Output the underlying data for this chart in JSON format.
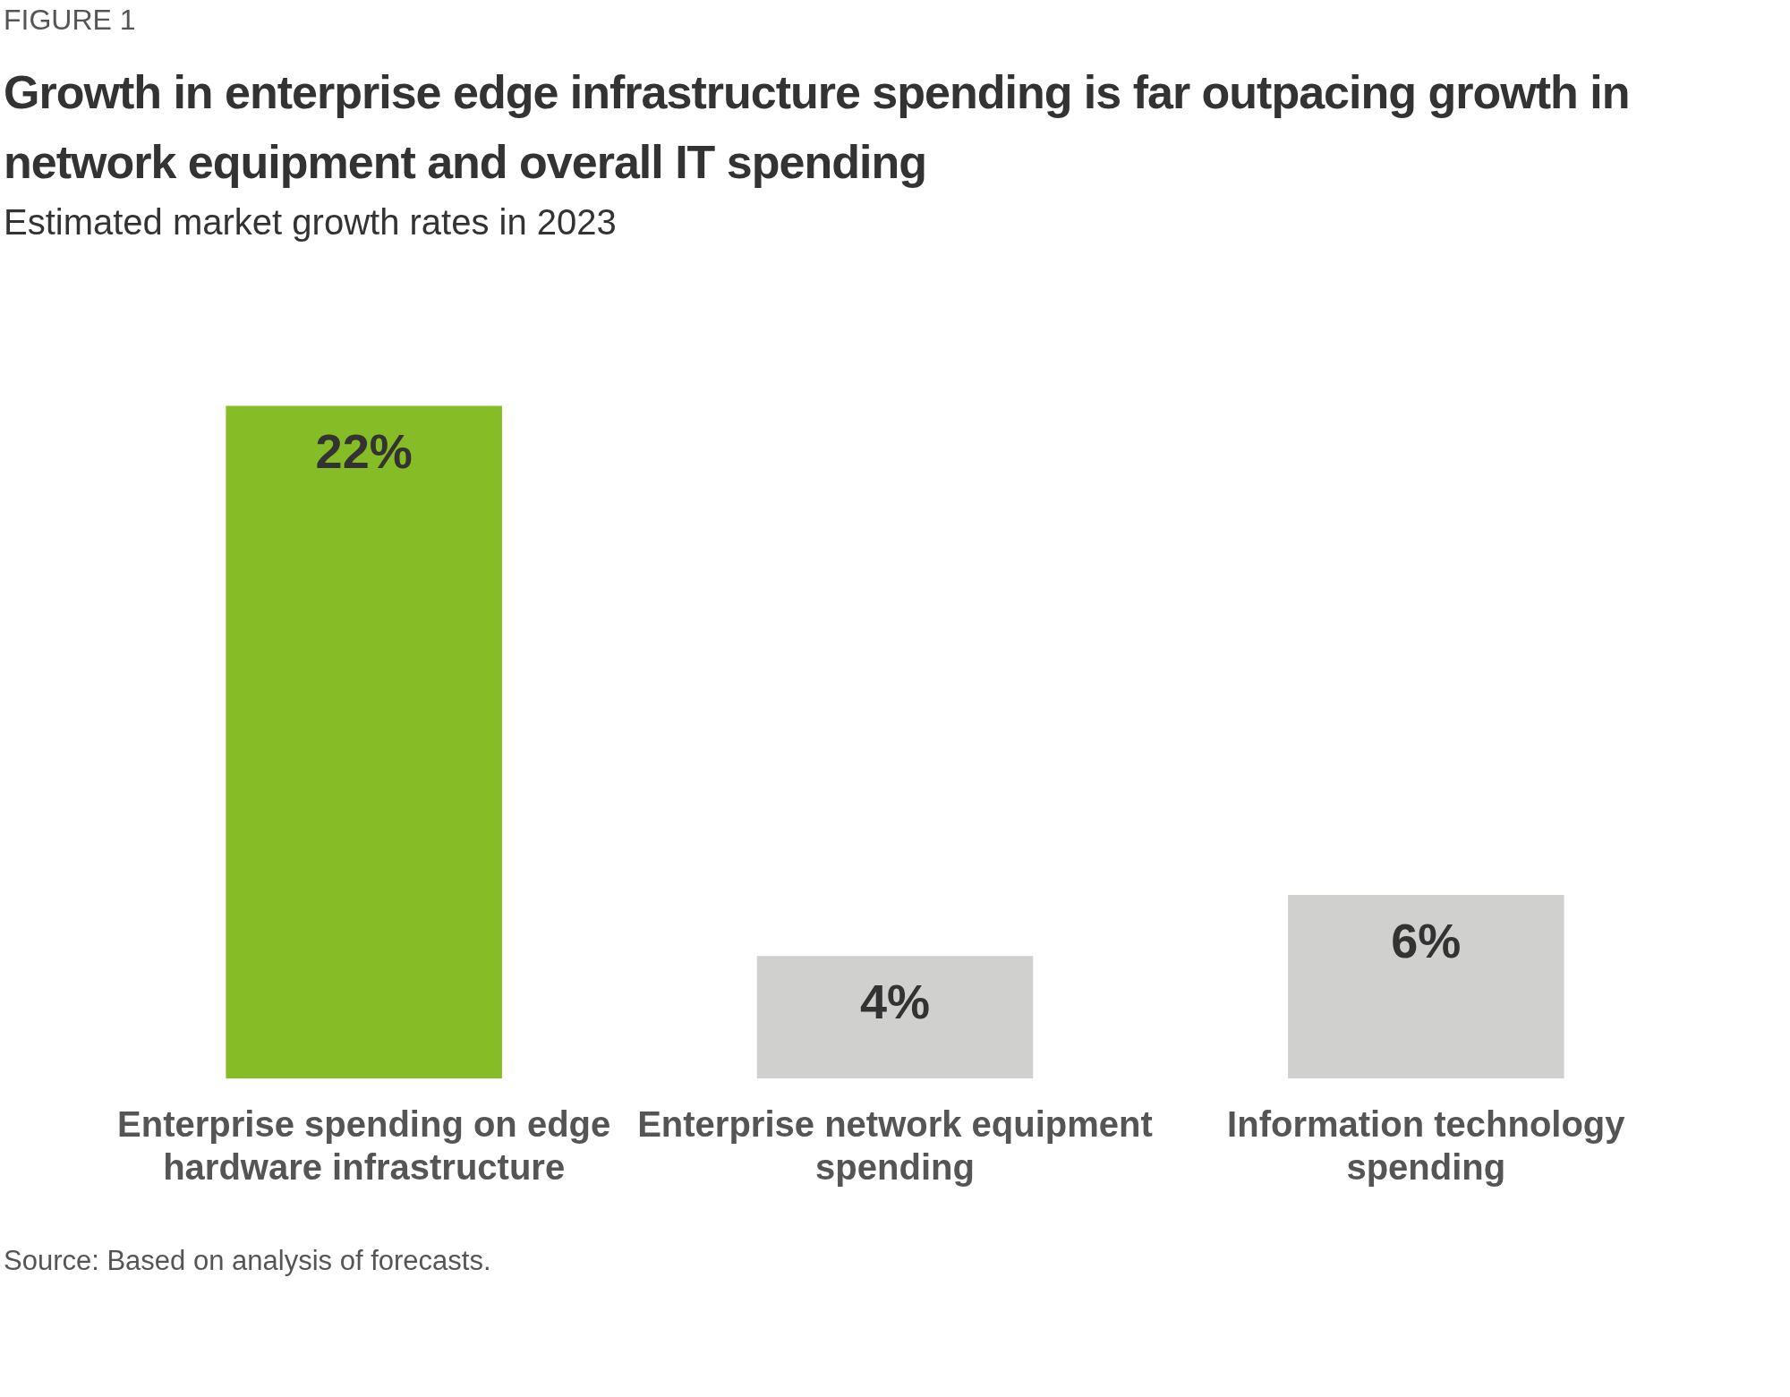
{
  "chart_data": {
    "type": "bar",
    "title": "Growth in enterprise edge infrastructure spending is far outpacing growth in network equipment and overall IT spending",
    "subtitle": "Estimated market growth rates in 2023",
    "categories": [
      "Enterprise spending on edge hardware infrastructure",
      "Enterprise network equipment spending",
      "Information technology spending"
    ],
    "values": [
      22,
      4,
      6
    ],
    "colors": [
      "#86bc25",
      "#d0d0ce",
      "#d0d0ce"
    ],
    "value_labels": [
      "22%",
      "4%",
      "6%"
    ],
    "grid": false,
    "legend": false,
    "annotations": [
      "FIGURE 1",
      "Source: Based on analysis of forecasts."
    ]
  }
}
